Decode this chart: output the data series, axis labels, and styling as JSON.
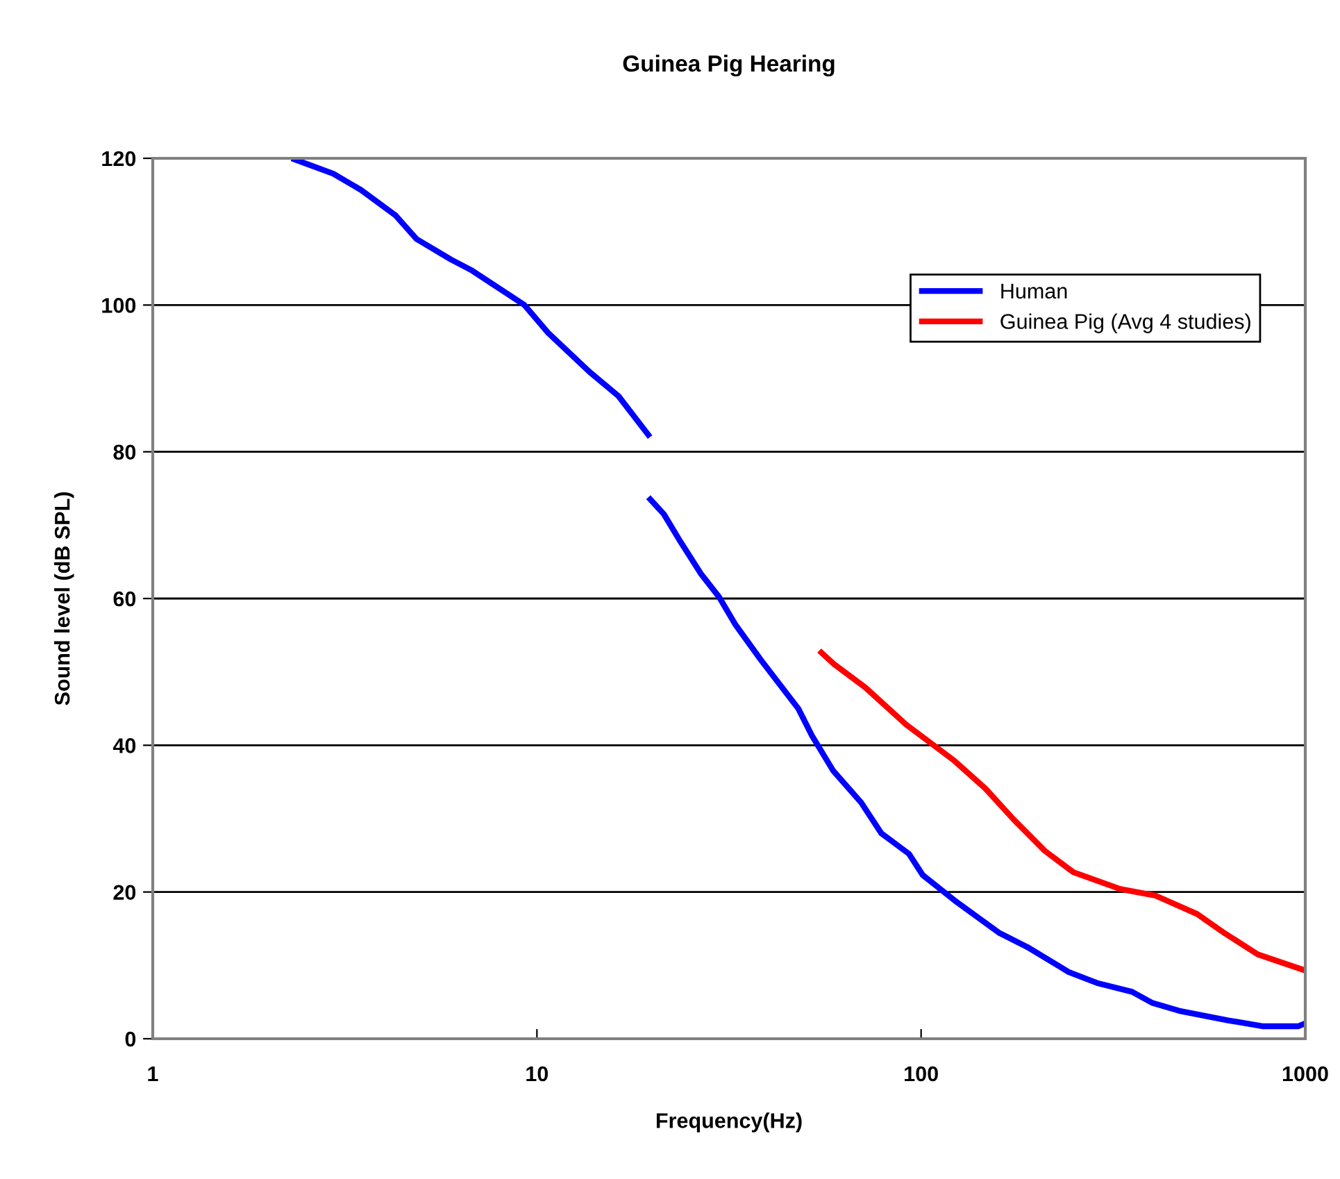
{
  "chart_data": {
    "type": "line",
    "title": "Guinea Pig Hearing",
    "xlabel": "Frequency(Hz)",
    "ylabel": "Sound level (dB SPL)",
    "log": "x",
    "xlim": [
      1,
      1000
    ],
    "xticks": [
      1,
      10,
      100,
      1000
    ],
    "ylim": [
      0,
      120
    ],
    "yticks": [
      0,
      20,
      40,
      60,
      80,
      100,
      120
    ],
    "grid": "y",
    "legend": "top right",
    "marker": "none",
    "line_style": "solid",
    "series": [
      {
        "name": "Human",
        "color": "#0000ff",
        "x": [
          2.3,
          2.95,
          3.48,
          4.29,
          4.86,
          5.98,
          6.78,
          9.28,
          10.7,
          13.7,
          16.3,
          19.7,
          19.6,
          19.5,
          21.4,
          23.6,
          26.7,
          29.8,
          32.9,
          38.2,
          44,
          47.9,
          52,
          59.1,
          69.8,
          78.8,
          93,
          101,
          124,
          160,
          189,
          242,
          287,
          354,
          399,
          470,
          630,
          777,
          958,
          1000
        ],
        "values": [
          120,
          117.9,
          115.7,
          112.2,
          109,
          106.2,
          104.7,
          100,
          96.2,
          90.9,
          87.6,
          82,
          null,
          73.8,
          71.5,
          67.8,
          63.4,
          60.2,
          56.4,
          51.7,
          47.5,
          45,
          41.3,
          36.5,
          32.2,
          28,
          25.2,
          22.3,
          18.6,
          14.4,
          12.5,
          9.1,
          7.6,
          6.4,
          4.9,
          3.8,
          2.5,
          1.7,
          1.7,
          2.1
        ]
      },
      {
        "name": "Guinea Pig (Avg 4 studies)",
        "color": "#ff0000",
        "x": [
          54.3,
          59.2,
          71.5,
          91.5,
          122,
          147,
          174,
          210,
          249,
          330,
          408,
          523,
          616,
          752,
          1000
        ],
        "values": [
          52.9,
          51.1,
          47.9,
          42.8,
          37.9,
          34.1,
          29.9,
          25.6,
          22.7,
          20.4,
          19.5,
          17,
          14.4,
          11.5,
          9.3
        ]
      }
    ]
  }
}
